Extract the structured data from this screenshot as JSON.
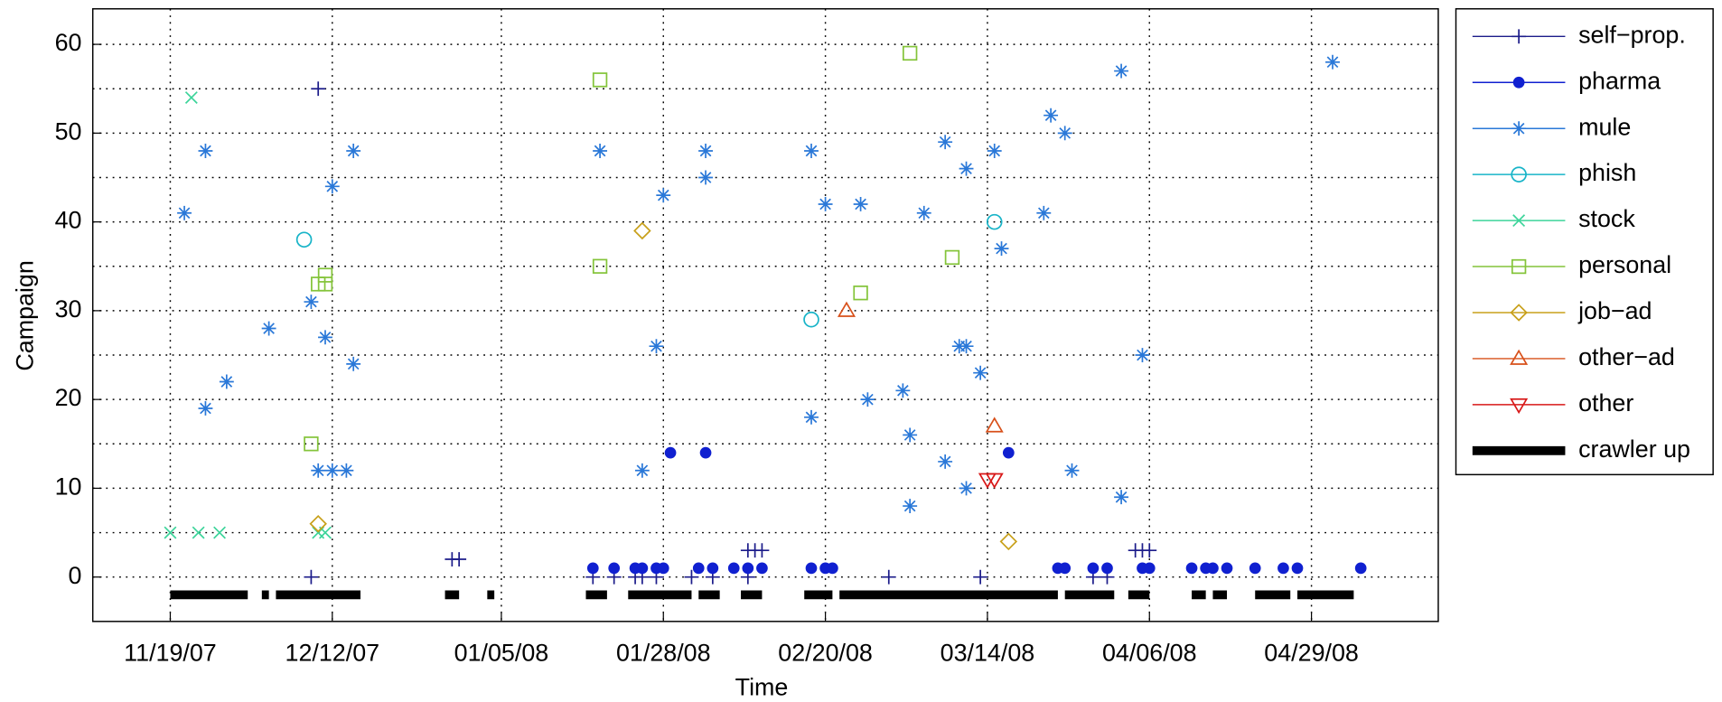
{
  "chart_data": {
    "type": "scatter",
    "xlabel": "Time",
    "ylabel": "Campaign",
    "xlim": [
      "2007-11-08",
      "2008-05-17"
    ],
    "ylim": [
      -5,
      64
    ],
    "xticks": [
      {
        "value": "2007-11-19",
        "label": "11/19/07"
      },
      {
        "value": "2007-12-12",
        "label": "12/12/07"
      },
      {
        "value": "2008-01-05",
        "label": "01/05/08"
      },
      {
        "value": "2008-01-28",
        "label": "01/28/08"
      },
      {
        "value": "2008-02-20",
        "label": "02/20/08"
      },
      {
        "value": "2008-03-14",
        "label": "03/14/08"
      },
      {
        "value": "2008-04-06",
        "label": "04/06/08"
      },
      {
        "value": "2008-04-29",
        "label": "04/29/08"
      }
    ],
    "yticks": [
      0,
      10,
      20,
      30,
      40,
      50,
      60
    ],
    "yminorticks": [
      5,
      15,
      25,
      35,
      45,
      55
    ],
    "grid": true,
    "legend": "outside-right",
    "series": [
      {
        "name": "self−prop.",
        "color": "#1c1c8a",
        "marker": "plus",
        "x": [
          "2007-12-10",
          "2007-12-09",
          "2007-12-29",
          "2007-12-30",
          "2008-01-18",
          "2008-01-21",
          "2008-01-24",
          "2008-01-25",
          "2008-01-27",
          "2008-02-01",
          "2008-02-04",
          "2008-02-09",
          "2008-02-09",
          "2008-02-10",
          "2008-02-11",
          "2008-02-29",
          "2008-03-13",
          "2008-03-29",
          "2008-03-31",
          "2008-04-04",
          "2008-04-05",
          "2008-04-06"
        ],
        "values": [
          55,
          0,
          2,
          2,
          0,
          0,
          0,
          0,
          0,
          0,
          0,
          0,
          3,
          3,
          3,
          0,
          0,
          0,
          0,
          3,
          3,
          3
        ]
      },
      {
        "name": "pharma",
        "color": "#1020d0",
        "marker": "dot",
        "x": [
          "2008-01-18",
          "2008-01-21",
          "2008-01-24",
          "2008-01-25",
          "2008-01-27",
          "2008-01-28",
          "2008-02-02",
          "2008-02-04",
          "2008-02-07",
          "2008-02-09",
          "2008-02-11",
          "2008-02-18",
          "2008-02-20",
          "2008-02-21",
          "2008-03-24",
          "2008-03-25",
          "2008-03-29",
          "2008-03-31",
          "2008-04-05",
          "2008-04-06",
          "2008-04-12",
          "2008-04-14",
          "2008-04-15",
          "2008-04-17",
          "2008-04-21",
          "2008-04-25",
          "2008-04-27",
          "2008-05-06",
          "2008-01-29",
          "2008-02-03",
          "2008-03-17"
        ],
        "values": [
          1,
          1,
          1,
          1,
          1,
          1,
          1,
          1,
          1,
          1,
          1,
          1,
          1,
          1,
          1,
          1,
          1,
          1,
          1,
          1,
          1,
          1,
          1,
          1,
          1,
          1,
          1,
          1,
          14,
          14,
          14
        ]
      },
      {
        "name": "mule",
        "color": "#2a78d8",
        "marker": "star",
        "x": [
          "2007-11-21",
          "2007-11-24",
          "2007-11-24",
          "2007-11-27",
          "2007-12-03",
          "2007-12-09",
          "2007-12-10",
          "2007-12-11",
          "2007-12-12",
          "2007-12-12",
          "2007-12-14",
          "2007-12-15",
          "2007-12-15",
          "2008-01-19",
          "2008-01-25",
          "2008-01-27",
          "2008-01-28",
          "2008-02-03",
          "2008-02-03",
          "2008-02-18",
          "2008-02-18",
          "2008-02-20",
          "2008-02-25",
          "2008-02-26",
          "2008-03-02",
          "2008-03-03",
          "2008-03-03",
          "2008-03-05",
          "2008-03-08",
          "2008-03-08",
          "2008-03-10",
          "2008-03-11",
          "2008-03-11",
          "2008-03-11",
          "2008-03-13",
          "2008-03-15",
          "2008-03-16",
          "2008-03-22",
          "2008-03-23",
          "2008-03-25",
          "2008-03-26",
          "2008-04-02",
          "2008-04-02",
          "2008-04-05",
          "2008-05-02"
        ],
        "values": [
          41,
          48,
          19,
          22,
          28,
          31,
          12,
          27,
          44,
          12,
          12,
          48,
          24,
          48,
          12,
          26,
          43,
          48,
          45,
          48,
          18,
          42,
          42,
          20,
          21,
          16,
          8,
          41,
          49,
          13,
          26,
          26,
          46,
          10,
          23,
          48,
          37,
          41,
          52,
          50,
          12,
          57,
          9,
          25,
          58
        ]
      },
      {
        "name": "phish",
        "color": "#18b4c8",
        "marker": "circle",
        "x": [
          "2007-12-08",
          "2008-02-18",
          "2008-03-15"
        ],
        "values": [
          38,
          29,
          40
        ]
      },
      {
        "name": "stock",
        "color": "#3cd49a",
        "marker": "cross",
        "x": [
          "2007-11-19",
          "2007-11-22",
          "2007-11-23",
          "2007-11-26",
          "2007-12-10",
          "2007-12-11"
        ],
        "values": [
          5,
          54,
          5,
          5,
          5,
          5
        ]
      },
      {
        "name": "personal",
        "color": "#84c43a",
        "marker": "square",
        "x": [
          "2008-01-19",
          "2008-01-19",
          "2007-12-09",
          "2007-12-10",
          "2007-12-11",
          "2007-12-11",
          "2008-02-25",
          "2008-03-03",
          "2008-03-09"
        ],
        "values": [
          56,
          35,
          15,
          33,
          33,
          34,
          32,
          59,
          36
        ]
      },
      {
        "name": "job−ad",
        "color": "#c8a01a",
        "marker": "diamond",
        "x": [
          "2008-01-25",
          "2007-12-10",
          "2008-03-17"
        ],
        "values": [
          39,
          6,
          4
        ]
      },
      {
        "name": "other−ad",
        "color": "#d8501a",
        "marker": "triangle",
        "x": [
          "2008-02-23",
          "2008-03-15"
        ],
        "values": [
          30,
          17
        ]
      },
      {
        "name": "other",
        "color": "#d81818",
        "marker": "triangle-down",
        "x": [
          "2008-03-14",
          "2008-03-15"
        ],
        "values": [
          11,
          11
        ]
      },
      {
        "name": "crawler up",
        "color": "#000000",
        "marker": "thick-line",
        "x": [
          "2007-11-19",
          "2007-11-30",
          null,
          "2007-12-02",
          "2007-12-03",
          null,
          "2007-12-04",
          "2007-12-16",
          null,
          "2007-12-28",
          "2007-12-30",
          null,
          "2008-01-03",
          "2008-01-04",
          null,
          "2008-01-17",
          "2008-01-20",
          null,
          "2008-01-23",
          "2008-02-01",
          null,
          "2008-02-02",
          "2008-02-05",
          null,
          "2008-02-08",
          "2008-02-11",
          null,
          "2008-02-17",
          "2008-02-21",
          null,
          "2008-02-22",
          "2008-03-24",
          null,
          "2008-03-25",
          "2008-04-01",
          null,
          "2008-04-03",
          "2008-04-06",
          null,
          "2008-04-12",
          "2008-04-14",
          null,
          "2008-04-15",
          "2008-04-17",
          null,
          "2008-04-21",
          "2008-04-26",
          null,
          "2008-04-27",
          "2008-05-05"
        ],
        "values": [
          -2,
          -2,
          null,
          -2,
          -2,
          null,
          -2,
          -2,
          null,
          -2,
          -2,
          null,
          -2,
          -2,
          null,
          -2,
          -2,
          null,
          -2,
          -2,
          null,
          -2,
          -2,
          null,
          -2,
          -2,
          null,
          -2,
          -2,
          null,
          -2,
          -2,
          null,
          -2,
          -2,
          null,
          -2,
          -2,
          null,
          -2,
          -2,
          null,
          -2,
          -2,
          null,
          -2,
          -2,
          null,
          -2,
          -2
        ]
      }
    ]
  }
}
